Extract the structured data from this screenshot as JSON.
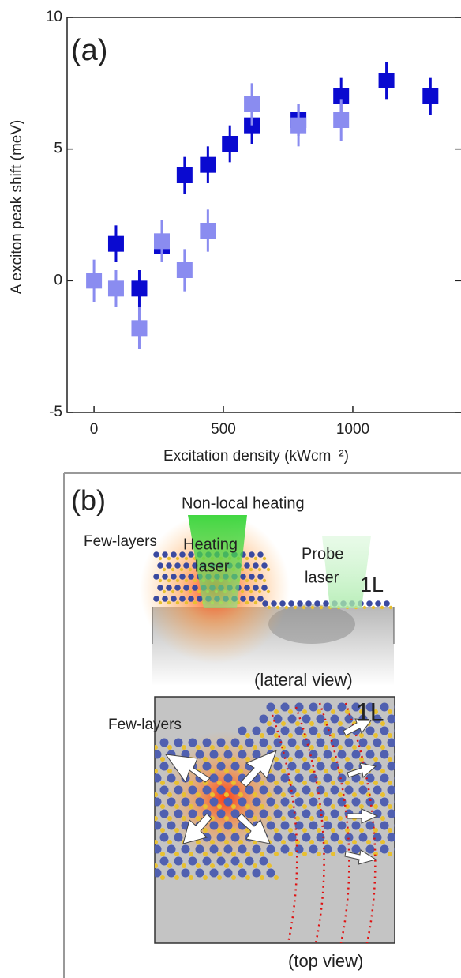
{
  "chart_data": {
    "type": "scatter",
    "annotation": "(a)",
    "x_label": "Excitation density (kWcm⁻²)",
    "y_label": "A exciton peak shift (meV)",
    "xlim": [
      -104,
      1418
    ],
    "ylim": [
      -5,
      10
    ],
    "xticks": [
      0,
      500,
      1000
    ],
    "yticks": [
      -5,
      0,
      5,
      10
    ],
    "series": [
      {
        "color": "#0a0ad0",
        "x": [
          85,
          175,
          262,
          350,
          440,
          525,
          610,
          790,
          955,
          1130,
          1300
        ],
        "values": [
          1.4,
          -0.3,
          1.3,
          4.0,
          4.4,
          5.2,
          5.9,
          6.1,
          7.0,
          7.6,
          7.0
        ],
        "errors": [
          0.7,
          0.7,
          0.5,
          0.7,
          0.7,
          0.7,
          0.7,
          0.6,
          0.7,
          0.7,
          0.7
        ]
      },
      {
        "color": "#8a8cf0",
        "x": [
          0,
          85,
          175,
          262,
          350,
          440,
          610,
          790,
          955
        ],
        "values": [
          0.0,
          -0.3,
          -1.8,
          1.5,
          0.4,
          1.9,
          6.7,
          5.9,
          6.1
        ],
        "errors": [
          0.8,
          0.7,
          0.8,
          0.8,
          0.8,
          0.8,
          0.8,
          0.8,
          0.8
        ]
      }
    ]
  },
  "panel_b": {
    "label": "(b)",
    "title": "Non-local heating",
    "heating_laser": [
      "Heating",
      "laser"
    ],
    "probe_laser": [
      "Probe",
      "laser"
    ],
    "lateral": {
      "few_layers": "Few-layers",
      "monolayer": "1L",
      "caption": "(lateral view)"
    },
    "top": {
      "few_layers": "Few-layers",
      "monolayer": "1L",
      "caption": "(top view)"
    }
  }
}
